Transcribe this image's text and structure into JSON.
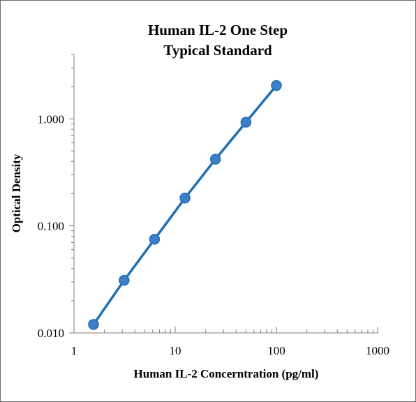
{
  "chart_data": {
    "type": "line",
    "title": "Human IL-2 One Step",
    "subtitle": "Typical Standard",
    "xlabel": "Human IL-2 Concerntration (pg/ml)",
    "ylabel": "Optical Density",
    "xscale": "log",
    "yscale": "log",
    "xlim": [
      1,
      1000
    ],
    "ylim": [
      0.01,
      4
    ],
    "x_ticks": [
      1,
      10,
      100,
      1000
    ],
    "x_tick_labels": [
      "1",
      "10",
      "100",
      "1000"
    ],
    "y_ticks": [
      0.01,
      0.1,
      1
    ],
    "y_tick_labels": [
      "0.010",
      "0.100",
      "1.000"
    ],
    "grid": false,
    "legend": "none",
    "series": [
      {
        "x": [
          1.56,
          3.13,
          6.25,
          12.5,
          25,
          50,
          100
        ],
        "y": [
          0.012,
          0.031,
          0.075,
          0.182,
          0.42,
          0.93,
          2.05
        ],
        "color": "#1f6fb5",
        "marker_color": "#3d7ec8"
      }
    ]
  }
}
